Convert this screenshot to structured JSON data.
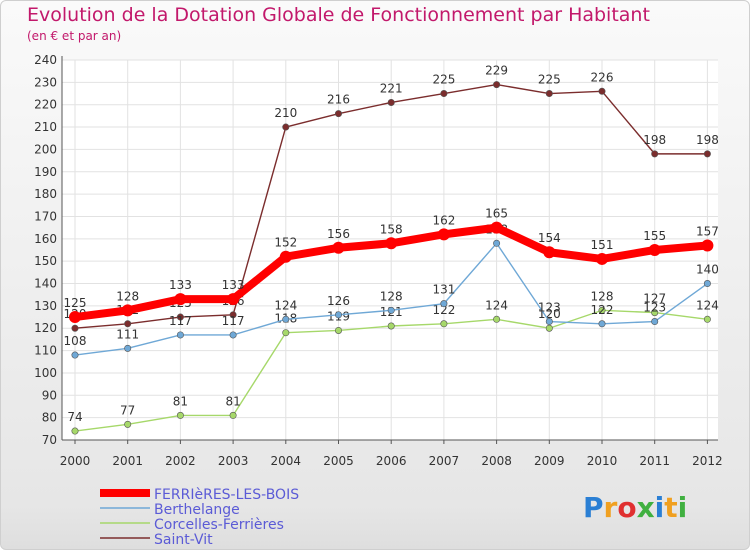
{
  "chart_data": {
    "type": "line",
    "title": "Evolution de la Dotation Globale de Fonctionnement par Habitant",
    "subtitle": "(en € et par an)",
    "x": [
      "2000",
      "2001",
      "2002",
      "2003",
      "2004",
      "2005",
      "2006",
      "2007",
      "2008",
      "2009",
      "2010",
      "2011",
      "2012"
    ],
    "ylim": [
      70,
      240
    ],
    "yticks": [
      70,
      80,
      90,
      100,
      110,
      120,
      130,
      140,
      150,
      160,
      170,
      180,
      190,
      200,
      210,
      220,
      230,
      240
    ],
    "grid": true,
    "legend_position": "bottom-left",
    "series": [
      {
        "name": "Saint-Vit",
        "color": "#7b2d2d",
        "width": 1.4,
        "values": [
          120,
          122,
          125,
          126,
          210,
          216,
          221,
          225,
          229,
          225,
          226,
          198,
          198
        ]
      },
      {
        "name": "Corcelles-Ferrières",
        "color": "#a6d86a",
        "width": 1.4,
        "values": [
          74,
          77,
          81,
          81,
          118,
          119,
          121,
          122,
          124,
          120,
          128,
          127,
          124
        ]
      },
      {
        "name": "Berthelange",
        "color": "#6fa8d6",
        "width": 1.4,
        "values": [
          108,
          111,
          117,
          117,
          124,
          126,
          128,
          131,
          158,
          123,
          122,
          123,
          140
        ]
      },
      {
        "name": "FERRIèRES-LES-BOIS",
        "color": "#ff0000",
        "width": 8,
        "values": [
          125,
          128,
          133,
          133,
          152,
          156,
          158,
          162,
          165,
          154,
          151,
          155,
          157
        ]
      }
    ],
    "legend_order": [
      "FERRIèRES-LES-BOIS",
      "Berthelange",
      "Corcelles-Ferrières",
      "Saint-Vit"
    ]
  },
  "logo": {
    "text": "Proxiti",
    "letter_colors": [
      "#2a7fd4",
      "#f0a020",
      "#e03030",
      "#40b040",
      "#2a7fd4",
      "#f0a020",
      "#40b040"
    ]
  },
  "colors": {
    "title": "#c2186b",
    "axis_text": "#333333",
    "legend_text": "#5b5bd6",
    "grid": "#e2e2e2"
  }
}
